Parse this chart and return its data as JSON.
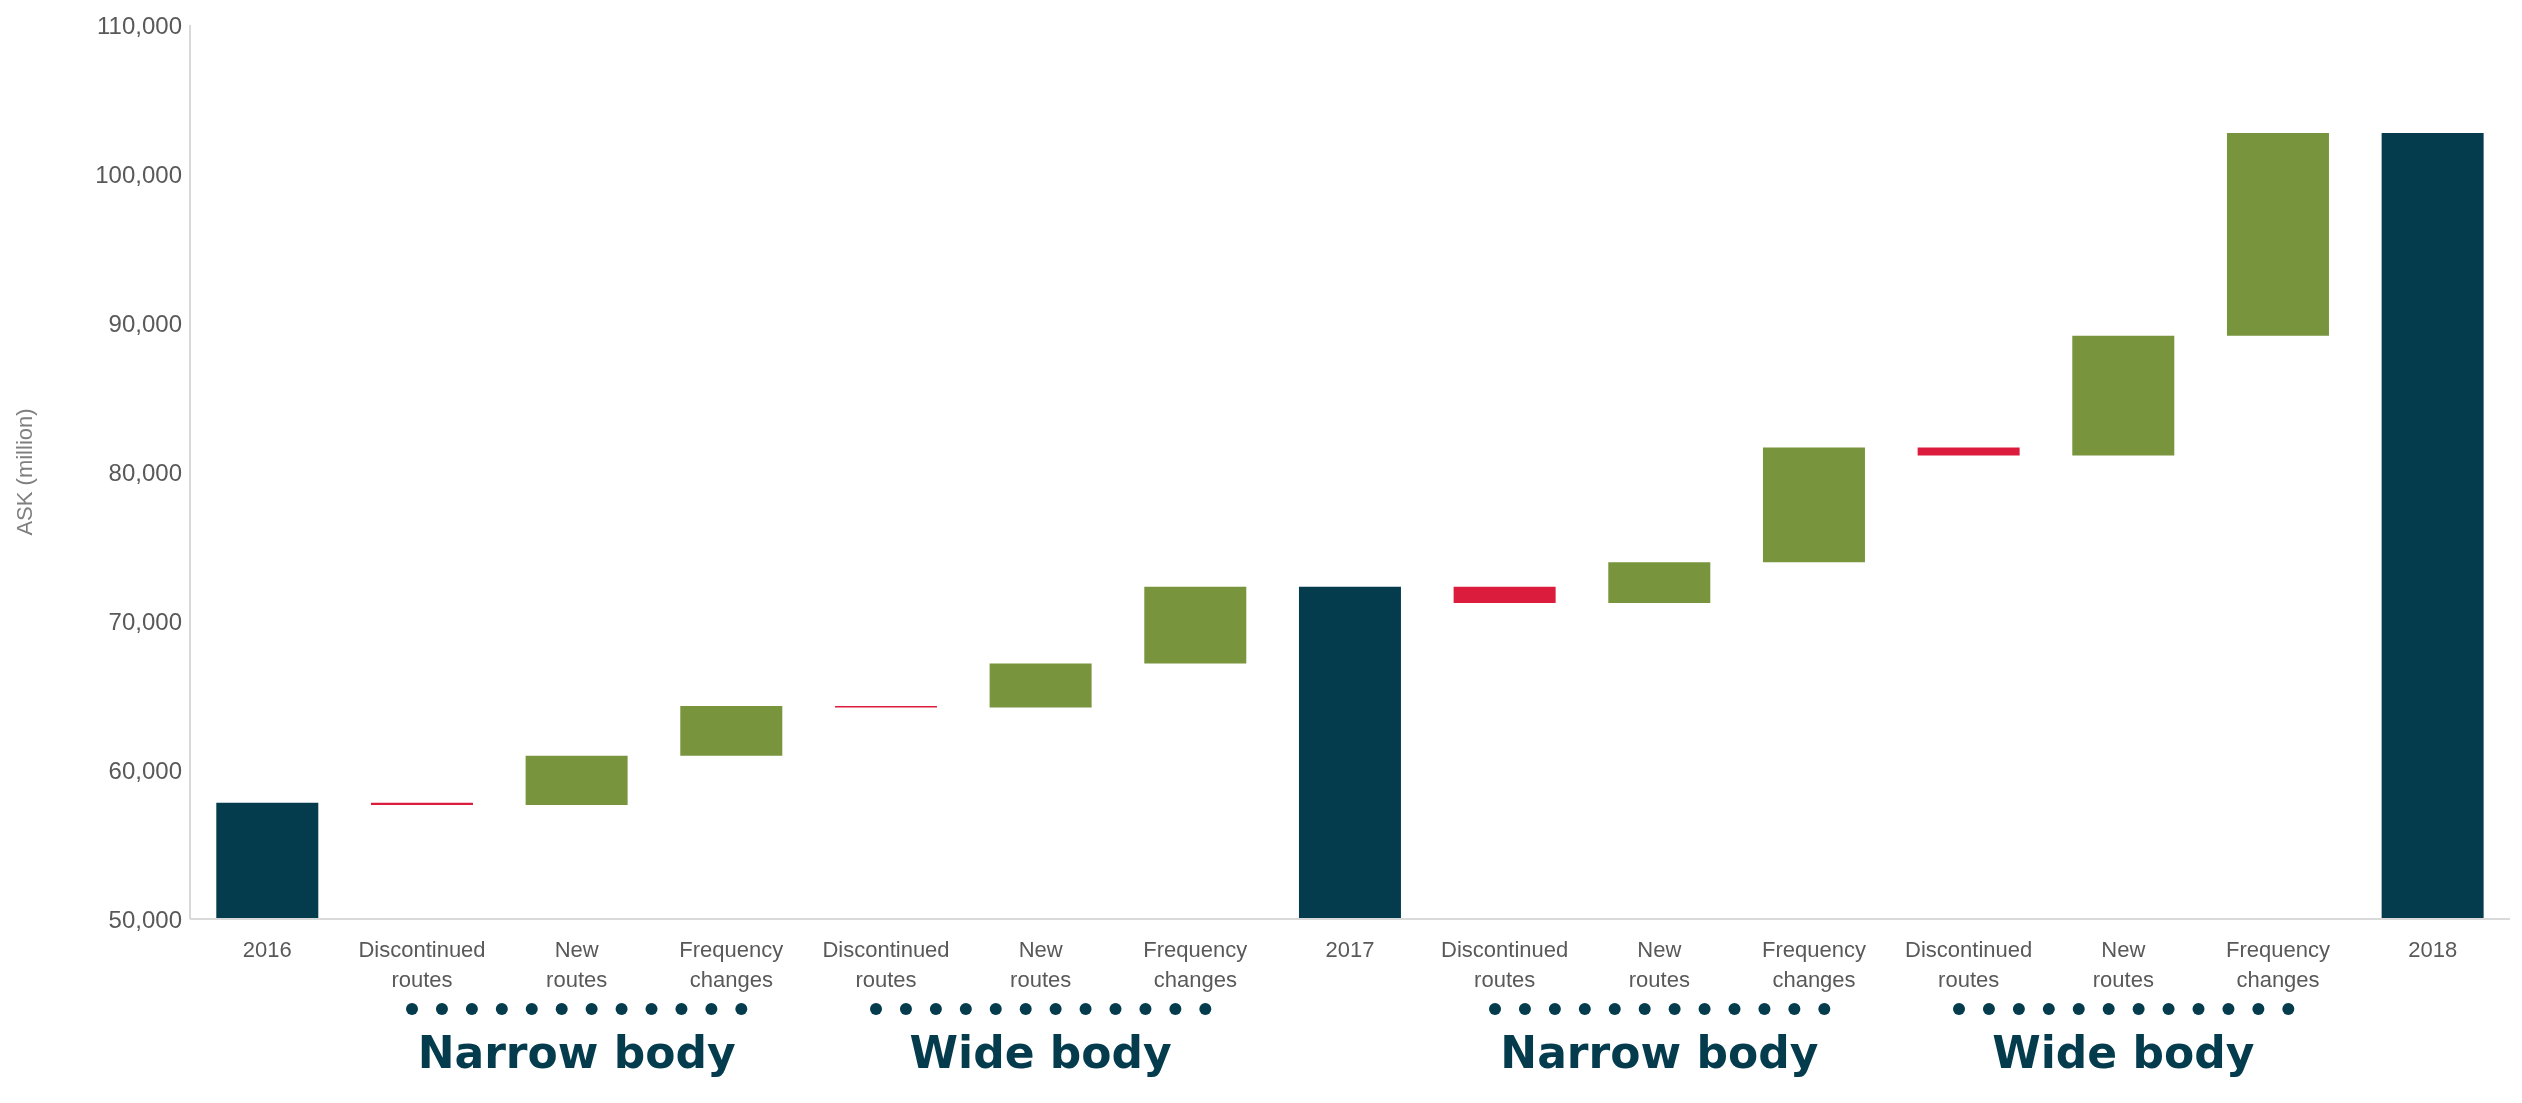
{
  "chart_data": {
    "type": "bar",
    "ylabel": "ASK (million)",
    "categories": [
      "2016",
      "Discontinued routes",
      "New routes",
      "Frequency changes",
      "Discontinued routes",
      "New routes",
      "Frequency changes",
      "2017",
      "Discontinued routes",
      "New routes",
      "Frequency changes",
      "Discontinued routes",
      "New routes",
      "Frequency changes",
      "2018"
    ],
    "values": [
      57800,
      -150,
      3300,
      3350,
      -100,
      2950,
      5150,
      72300,
      -1100,
      2750,
      7700,
      -550,
      8050,
      13600,
      102750
    ],
    "base": [
      null,
      57800,
      57650,
      60950,
      64300,
      64200,
      67150,
      null,
      72300,
      71200,
      73950,
      81650,
      81100,
      89150,
      null
    ],
    "colors": [
      "#043c4e",
      "#dc1c3c",
      "#78943c",
      "#78943c",
      "#dc1c3c",
      "#78943c",
      "#78943c",
      "#043c4e",
      "#dc1c3c",
      "#78943c",
      "#78943c",
      "#dc1c3c",
      "#78943c",
      "#78943c",
      "#043c4e"
    ],
    "ylim": [
      50000,
      110000
    ],
    "yticks": [
      {
        "value": 50000,
        "label": "50,000"
      },
      {
        "value": 60000,
        "label": "60,000"
      },
      {
        "value": 70000,
        "label": "70,000"
      },
      {
        "value": 80000,
        "label": "80,000"
      },
      {
        "value": 90000,
        "label": "90,000"
      },
      {
        "value": 100000,
        "label": "100,000"
      },
      {
        "value": 110000,
        "label": "110,000"
      }
    ],
    "annotations": [
      "Narrow body",
      "Wide body",
      "Narrow body",
      "Wide body"
    ]
  }
}
